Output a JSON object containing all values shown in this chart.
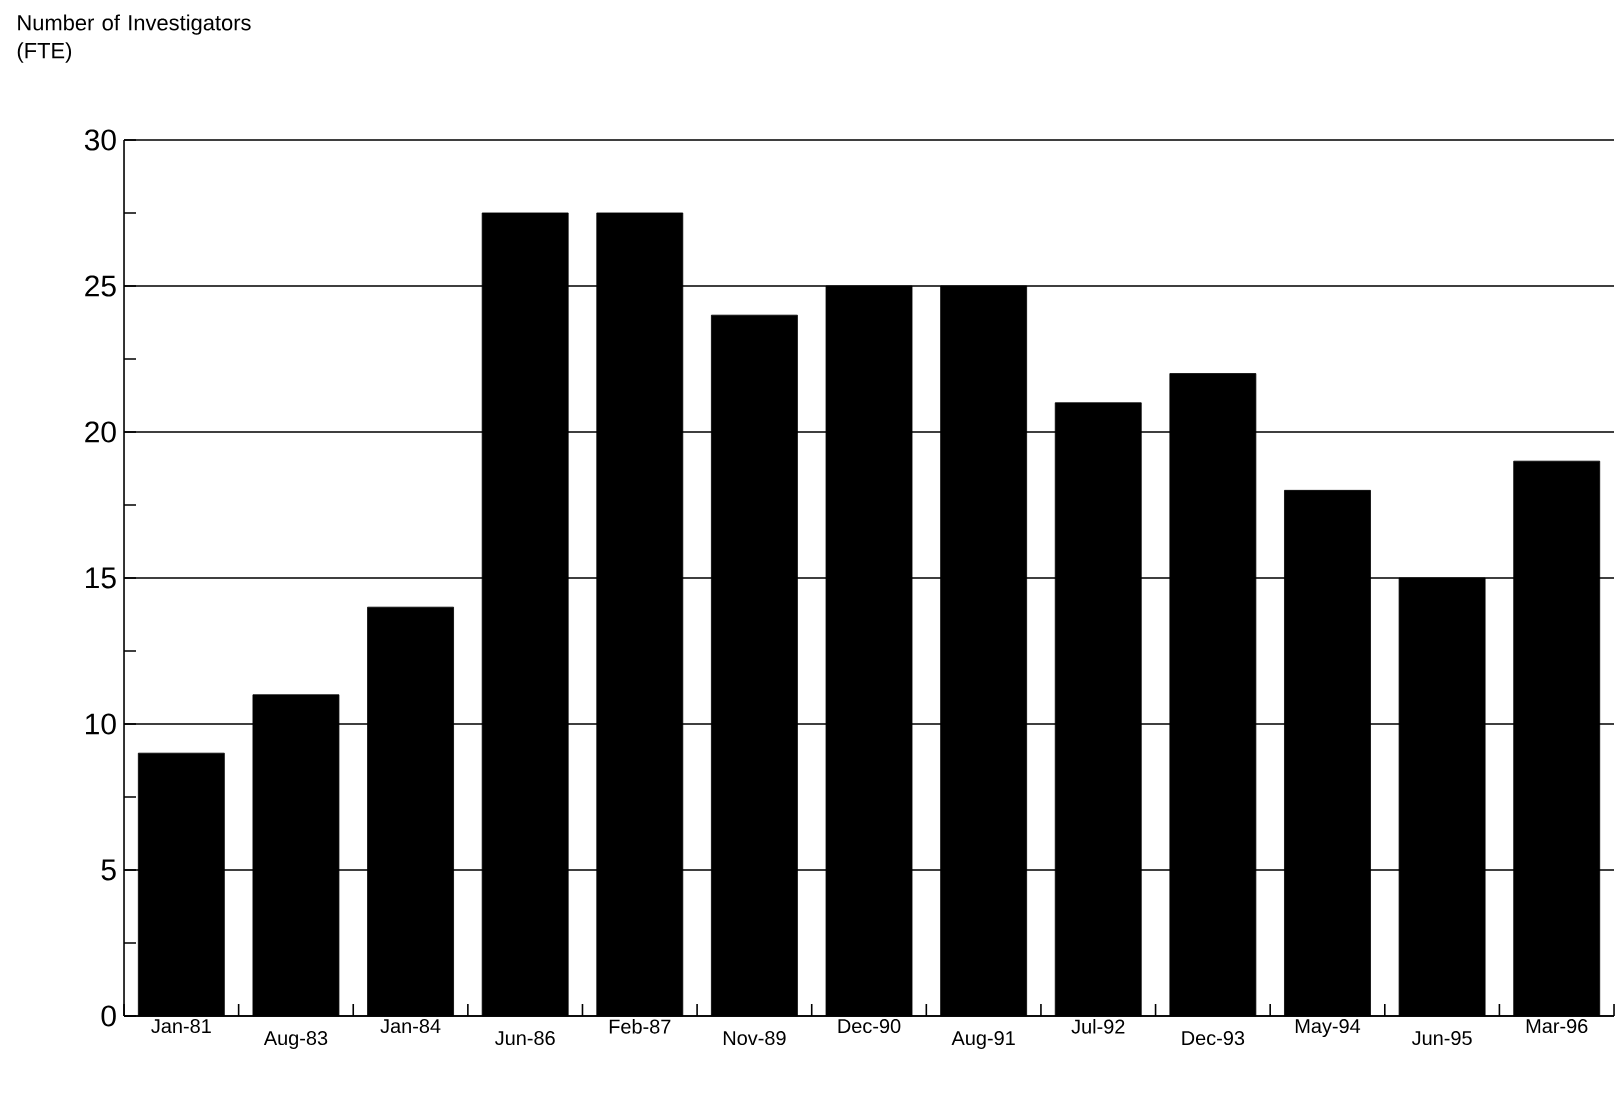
{
  "chart_data": {
    "type": "bar",
    "ylabel": "Number of Investigators (FTE)",
    "categories": [
      "Jan-81",
      "Aug-83",
      "Jan-84",
      "Jun-86",
      "Feb-87",
      "Nov-89",
      "Dec-90",
      "Aug-91",
      "Jul-92",
      "Dec-93",
      "May-94",
      "Jun-95",
      "Mar-96"
    ],
    "values": [
      9,
      11,
      14,
      27.5,
      27.5,
      24,
      25,
      25,
      21,
      22,
      18,
      15,
      19
    ],
    "color": "#000000",
    "ylim": [
      0,
      30
    ],
    "yticks": [
      0,
      5,
      10,
      15,
      20,
      25,
      30
    ],
    "grid": "y"
  }
}
